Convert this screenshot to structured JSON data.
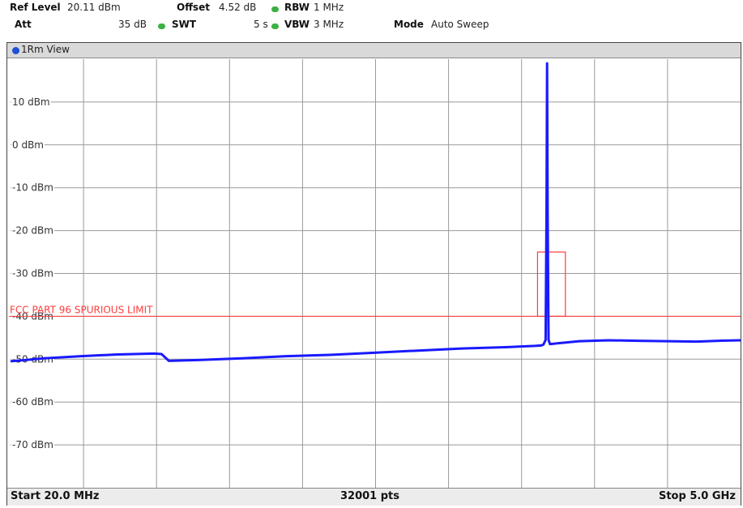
{
  "header": {
    "ref_level_label": "Ref Level",
    "ref_level_value": "20.11 dBm",
    "offset_label": "Offset",
    "offset_value": "4.52 dB",
    "rbw_label": "RBW",
    "rbw_value": "1 MHz",
    "att_label": "Att",
    "att_value": "35 dB",
    "swt_label": "SWT",
    "swt_value": "5 s",
    "vbw_label": "VBW",
    "vbw_value": "3 MHz",
    "mode_label": "Mode",
    "mode_value": "Auto Sweep"
  },
  "view": {
    "label": "1Rm View"
  },
  "footer": {
    "start": "Start 20.0 MHz",
    "points": "32001 pts",
    "stop": "Stop 5.0 GHz"
  },
  "chart_data": {
    "type": "line",
    "xlabel": "",
    "ylabel": "",
    "xlim": [
      20,
      5000
    ],
    "ylim": [
      -80,
      20
    ],
    "y_ticks": [
      10,
      0,
      -10,
      -20,
      -30,
      -40,
      -50,
      -60,
      -70
    ],
    "y_tick_labels": [
      "10 dBm",
      "0 dBm",
      "-10 dBm",
      "-20 dBm",
      "-30 dBm",
      "-40 dBm",
      "-50 dBm",
      "-60 dBm",
      "-70 dBm"
    ],
    "grid": true,
    "limit_line": {
      "label": "FCC PART 96 SPURIOUS LIMIT",
      "value": -40,
      "color": "#ff3b3b"
    },
    "limit_box": {
      "x_from": 3615,
      "x_to": 3805,
      "y_from": -40,
      "y_to": -25,
      "color": "#ff3b3b"
    },
    "series": [
      {
        "color": "#1a1aff",
        "x": [
          20,
          120,
          250,
          500,
          750,
          1000,
          1050,
          1100,
          1300,
          1600,
          1900,
          2200,
          2500,
          2800,
          3100,
          3400,
          3600,
          3640,
          3655,
          3670,
          3676,
          3680,
          3684,
          3690,
          3700,
          3750,
          3900,
          4100,
          4300,
          4500,
          4700,
          4850,
          5000
        ],
        "y": [
          -50.5,
          -50.2,
          -49.8,
          -49.3,
          -48.9,
          -48.7,
          -48.8,
          -50.4,
          -50.2,
          -49.8,
          -49.3,
          -49.0,
          -48.5,
          -48.0,
          -47.5,
          -47.2,
          -46.9,
          -46.8,
          -46.6,
          -45.5,
          -16.0,
          19.0,
          -16.0,
          -45.5,
          -46.5,
          -46.3,
          -45.8,
          -45.6,
          -45.7,
          -45.8,
          -45.9,
          -45.7,
          -45.6
        ]
      }
    ]
  }
}
